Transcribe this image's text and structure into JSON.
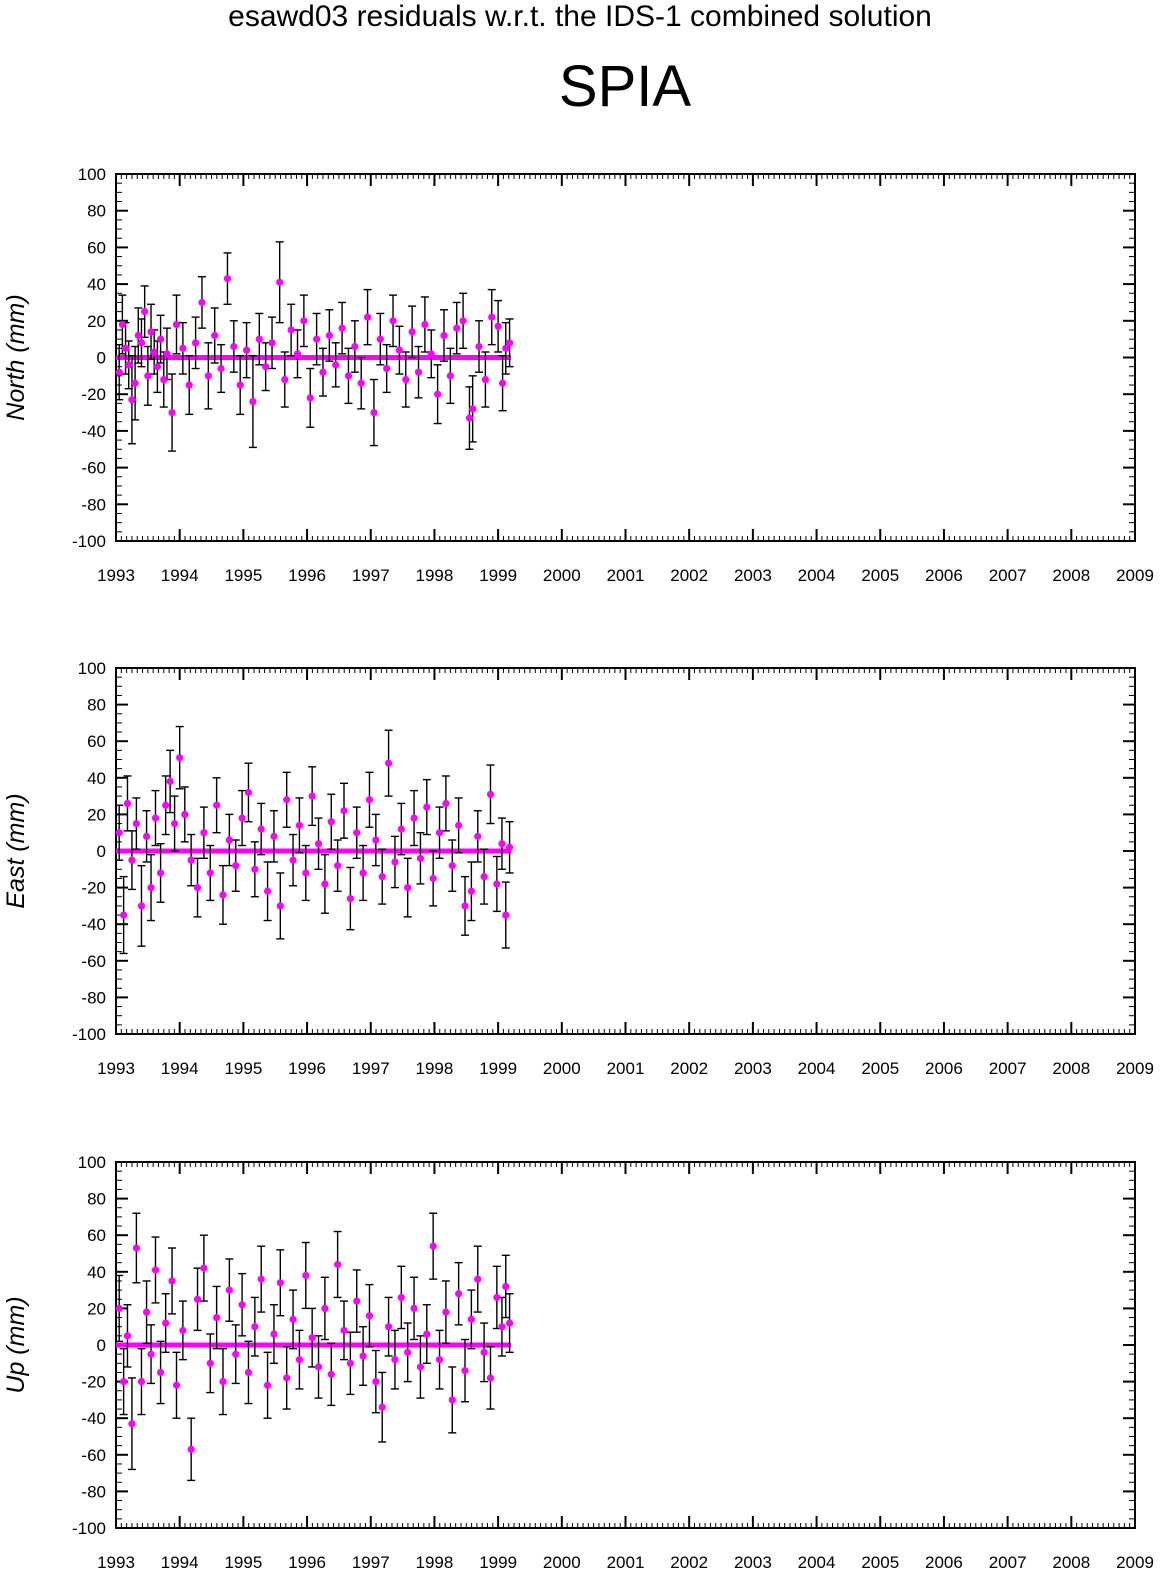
{
  "figure": {
    "title": "esawd03 residuals w.r.t. the IDS-1 combined solution",
    "station": "SPIA"
  },
  "colors": {
    "marker": "#ff00ff",
    "errorbar": "#000000",
    "axes": "#000000",
    "background": "#ffffff"
  },
  "chart_data": [
    {
      "type": "scatter",
      "name": "north",
      "ylabel": "North (mm)",
      "xlim": [
        1993,
        2009
      ],
      "ylim": [
        -100,
        100
      ],
      "xticks": [
        "1993",
        "1994",
        "1995",
        "1996",
        "1997",
        "1998",
        "1999",
        "2000",
        "2001",
        "2002",
        "2003",
        "2004",
        "2005",
        "2006",
        "2007",
        "2008",
        "2009"
      ],
      "yticks": [
        "-100",
        "-80",
        "-60",
        "-40",
        "-20",
        "0",
        "20",
        "40",
        "60",
        "80",
        "100"
      ],
      "grid": false,
      "data_range_x": [
        1993.0,
        1999.2
      ],
      "points": [
        {
          "x": 1993.05,
          "y": -8,
          "err": 15
        },
        {
          "x": 1993.1,
          "y": 18,
          "err": 16
        },
        {
          "x": 1993.15,
          "y": 5,
          "err": 14
        },
        {
          "x": 1993.2,
          "y": -4,
          "err": 13
        },
        {
          "x": 1993.25,
          "y": -23,
          "err": 24
        },
        {
          "x": 1993.3,
          "y": -14,
          "err": 20
        },
        {
          "x": 1993.35,
          "y": 12,
          "err": 15
        },
        {
          "x": 1993.4,
          "y": 8,
          "err": 13
        },
        {
          "x": 1993.45,
          "y": 25,
          "err": 14
        },
        {
          "x": 1993.5,
          "y": -10,
          "err": 16
        },
        {
          "x": 1993.55,
          "y": 14,
          "err": 15
        },
        {
          "x": 1993.6,
          "y": 3,
          "err": 12
        },
        {
          "x": 1993.65,
          "y": -5,
          "err": 14
        },
        {
          "x": 1993.7,
          "y": 10,
          "err": 13
        },
        {
          "x": 1993.75,
          "y": -12,
          "err": 15
        },
        {
          "x": 1993.8,
          "y": 2,
          "err": 14
        },
        {
          "x": 1993.88,
          "y": -30,
          "err": 21
        },
        {
          "x": 1993.95,
          "y": 18,
          "err": 16
        },
        {
          "x": 1994.05,
          "y": 5,
          "err": 14
        },
        {
          "x": 1994.15,
          "y": -15,
          "err": 16
        },
        {
          "x": 1994.25,
          "y": 8,
          "err": 14
        },
        {
          "x": 1994.35,
          "y": 30,
          "err": 14
        },
        {
          "x": 1994.45,
          "y": -10,
          "err": 18
        },
        {
          "x": 1994.55,
          "y": 12,
          "err": 15
        },
        {
          "x": 1994.65,
          "y": -6,
          "err": 13
        },
        {
          "x": 1994.75,
          "y": 43,
          "err": 14
        },
        {
          "x": 1994.85,
          "y": 6,
          "err": 14
        },
        {
          "x": 1994.95,
          "y": -15,
          "err": 16
        },
        {
          "x": 1995.05,
          "y": 4,
          "err": 15
        },
        {
          "x": 1995.15,
          "y": -24,
          "err": 25
        },
        {
          "x": 1995.25,
          "y": 10,
          "err": 14
        },
        {
          "x": 1995.35,
          "y": -5,
          "err": 13
        },
        {
          "x": 1995.45,
          "y": 8,
          "err": 14
        },
        {
          "x": 1995.57,
          "y": 41,
          "err": 22
        },
        {
          "x": 1995.65,
          "y": -12,
          "err": 15
        },
        {
          "x": 1995.75,
          "y": 15,
          "err": 14
        },
        {
          "x": 1995.85,
          "y": 2,
          "err": 13
        },
        {
          "x": 1995.95,
          "y": 20,
          "err": 14
        },
        {
          "x": 1996.05,
          "y": -22,
          "err": 16
        },
        {
          "x": 1996.15,
          "y": 10,
          "err": 14
        },
        {
          "x": 1996.25,
          "y": -8,
          "err": 13
        },
        {
          "x": 1996.35,
          "y": 12,
          "err": 14
        },
        {
          "x": 1996.45,
          "y": -4,
          "err": 12
        },
        {
          "x": 1996.55,
          "y": 16,
          "err": 14
        },
        {
          "x": 1996.65,
          "y": -10,
          "err": 15
        },
        {
          "x": 1996.75,
          "y": 6,
          "err": 14
        },
        {
          "x": 1996.85,
          "y": -14,
          "err": 14
        },
        {
          "x": 1996.95,
          "y": 22,
          "err": 15
        },
        {
          "x": 1997.05,
          "y": -30,
          "err": 18
        },
        {
          "x": 1997.15,
          "y": 10,
          "err": 14
        },
        {
          "x": 1997.25,
          "y": -6,
          "err": 13
        },
        {
          "x": 1997.35,
          "y": 20,
          "err": 14
        },
        {
          "x": 1997.45,
          "y": 4,
          "err": 13
        },
        {
          "x": 1997.55,
          "y": -12,
          "err": 15
        },
        {
          "x": 1997.65,
          "y": 14,
          "err": 14
        },
        {
          "x": 1997.75,
          "y": -8,
          "err": 14
        },
        {
          "x": 1997.85,
          "y": 18,
          "err": 15
        },
        {
          "x": 1997.95,
          "y": 2,
          "err": 13
        },
        {
          "x": 1998.05,
          "y": -20,
          "err": 16
        },
        {
          "x": 1998.15,
          "y": 12,
          "err": 14
        },
        {
          "x": 1998.25,
          "y": -10,
          "err": 15
        },
        {
          "x": 1998.35,
          "y": 16,
          "err": 14
        },
        {
          "x": 1998.45,
          "y": 20,
          "err": 15
        },
        {
          "x": 1998.55,
          "y": -33,
          "err": 17
        },
        {
          "x": 1998.6,
          "y": -28,
          "err": 18
        },
        {
          "x": 1998.7,
          "y": 6,
          "err": 14
        },
        {
          "x": 1998.8,
          "y": -12,
          "err": 15
        },
        {
          "x": 1998.9,
          "y": 22,
          "err": 15
        },
        {
          "x": 1999.0,
          "y": 17,
          "err": 14
        },
        {
          "x": 1999.07,
          "y": -14,
          "err": 15
        },
        {
          "x": 1999.12,
          "y": 5,
          "err": 14
        },
        {
          "x": 1999.18,
          "y": 8,
          "err": 13
        }
      ]
    },
    {
      "type": "scatter",
      "name": "east",
      "ylabel": "East (mm)",
      "xlim": [
        1993,
        2009
      ],
      "ylim": [
        -100,
        100
      ],
      "xticks": [
        "1993",
        "1994",
        "1995",
        "1996",
        "1997",
        "1998",
        "1999",
        "2000",
        "2001",
        "2002",
        "2003",
        "2004",
        "2005",
        "2006",
        "2007",
        "2008",
        "2009"
      ],
      "yticks": [
        "-100",
        "-80",
        "-60",
        "-40",
        "-20",
        "0",
        "20",
        "40",
        "60",
        "80",
        "100"
      ],
      "grid": false,
      "data_range_x": [
        1993.0,
        1999.2
      ],
      "points": [
        {
          "x": 1993.05,
          "y": 10,
          "err": 15
        },
        {
          "x": 1993.12,
          "y": -35,
          "err": 21
        },
        {
          "x": 1993.18,
          "y": 26,
          "err": 15
        },
        {
          "x": 1993.25,
          "y": -5,
          "err": 16
        },
        {
          "x": 1993.32,
          "y": 15,
          "err": 14
        },
        {
          "x": 1993.4,
          "y": -30,
          "err": 22
        },
        {
          "x": 1993.48,
          "y": 8,
          "err": 14
        },
        {
          "x": 1993.55,
          "y": -20,
          "err": 18
        },
        {
          "x": 1993.62,
          "y": 18,
          "err": 15
        },
        {
          "x": 1993.7,
          "y": -12,
          "err": 16
        },
        {
          "x": 1993.78,
          "y": 25,
          "err": 16
        },
        {
          "x": 1993.85,
          "y": 38,
          "err": 17
        },
        {
          "x": 1993.92,
          "y": 15,
          "err": 15
        },
        {
          "x": 1994.0,
          "y": 51,
          "err": 17
        },
        {
          "x": 1994.08,
          "y": 20,
          "err": 15
        },
        {
          "x": 1994.18,
          "y": -5,
          "err": 14
        },
        {
          "x": 1994.28,
          "y": -20,
          "err": 16
        },
        {
          "x": 1994.38,
          "y": 10,
          "err": 14
        },
        {
          "x": 1994.48,
          "y": -12,
          "err": 15
        },
        {
          "x": 1994.58,
          "y": 25,
          "err": 15
        },
        {
          "x": 1994.68,
          "y": -24,
          "err": 16
        },
        {
          "x": 1994.78,
          "y": 6,
          "err": 14
        },
        {
          "x": 1994.88,
          "y": -8,
          "err": 14
        },
        {
          "x": 1994.98,
          "y": 18,
          "err": 15
        },
        {
          "x": 1995.08,
          "y": 32,
          "err": 16
        },
        {
          "x": 1995.18,
          "y": -10,
          "err": 15
        },
        {
          "x": 1995.28,
          "y": 12,
          "err": 14
        },
        {
          "x": 1995.38,
          "y": -22,
          "err": 16
        },
        {
          "x": 1995.48,
          "y": 8,
          "err": 14
        },
        {
          "x": 1995.58,
          "y": -30,
          "err": 18
        },
        {
          "x": 1995.68,
          "y": 28,
          "err": 15
        },
        {
          "x": 1995.78,
          "y": -5,
          "err": 14
        },
        {
          "x": 1995.88,
          "y": 14,
          "err": 15
        },
        {
          "x": 1995.98,
          "y": -12,
          "err": 15
        },
        {
          "x": 1996.08,
          "y": 30,
          "err": 16
        },
        {
          "x": 1996.18,
          "y": 4,
          "err": 14
        },
        {
          "x": 1996.28,
          "y": -18,
          "err": 16
        },
        {
          "x": 1996.38,
          "y": 16,
          "err": 15
        },
        {
          "x": 1996.48,
          "y": -8,
          "err": 14
        },
        {
          "x": 1996.58,
          "y": 22,
          "err": 15
        },
        {
          "x": 1996.68,
          "y": -26,
          "err": 17
        },
        {
          "x": 1996.78,
          "y": 10,
          "err": 14
        },
        {
          "x": 1996.88,
          "y": -12,
          "err": 15
        },
        {
          "x": 1996.98,
          "y": 28,
          "err": 15
        },
        {
          "x": 1997.08,
          "y": 6,
          "err": 14
        },
        {
          "x": 1997.18,
          "y": -14,
          "err": 15
        },
        {
          "x": 1997.28,
          "y": 48,
          "err": 18
        },
        {
          "x": 1997.38,
          "y": -6,
          "err": 14
        },
        {
          "x": 1997.48,
          "y": 12,
          "err": 14
        },
        {
          "x": 1997.58,
          "y": -20,
          "err": 16
        },
        {
          "x": 1997.68,
          "y": 18,
          "err": 15
        },
        {
          "x": 1997.78,
          "y": -4,
          "err": 14
        },
        {
          "x": 1997.88,
          "y": 24,
          "err": 15
        },
        {
          "x": 1997.98,
          "y": -15,
          "err": 15
        },
        {
          "x": 1998.08,
          "y": 10,
          "err": 14
        },
        {
          "x": 1998.18,
          "y": 26,
          "err": 15
        },
        {
          "x": 1998.28,
          "y": -8,
          "err": 14
        },
        {
          "x": 1998.38,
          "y": 14,
          "err": 15
        },
        {
          "x": 1998.48,
          "y": -30,
          "err": 16
        },
        {
          "x": 1998.58,
          "y": -22,
          "err": 16
        },
        {
          "x": 1998.68,
          "y": 8,
          "err": 14
        },
        {
          "x": 1998.78,
          "y": -14,
          "err": 15
        },
        {
          "x": 1998.88,
          "y": 31,
          "err": 16
        },
        {
          "x": 1998.98,
          "y": -18,
          "err": 15
        },
        {
          "x": 1999.06,
          "y": 4,
          "err": 14
        },
        {
          "x": 1999.12,
          "y": -35,
          "err": 18
        },
        {
          "x": 1999.18,
          "y": 2,
          "err": 14
        }
      ]
    },
    {
      "type": "scatter",
      "name": "up",
      "ylabel": "Up (mm)",
      "xlim": [
        1993,
        2009
      ],
      "ylim": [
        -100,
        100
      ],
      "xticks": [
        "1993",
        "1994",
        "1995",
        "1996",
        "1997",
        "1998",
        "1999",
        "2000",
        "2001",
        "2002",
        "2003",
        "2004",
        "2005",
        "2006",
        "2007",
        "2008",
        "2009"
      ],
      "yticks": [
        "-100",
        "-80",
        "-60",
        "-40",
        "-20",
        "0",
        "20",
        "40",
        "60",
        "80",
        "100"
      ],
      "grid": false,
      "data_range_x": [
        1993.0,
        1999.2
      ],
      "points": [
        {
          "x": 1993.05,
          "y": 20,
          "err": 18
        },
        {
          "x": 1993.12,
          "y": -20,
          "err": 18
        },
        {
          "x": 1993.18,
          "y": 5,
          "err": 17
        },
        {
          "x": 1993.25,
          "y": -43,
          "err": 25
        },
        {
          "x": 1993.32,
          "y": 53,
          "err": 19
        },
        {
          "x": 1993.4,
          "y": -20,
          "err": 18
        },
        {
          "x": 1993.48,
          "y": 18,
          "err": 17
        },
        {
          "x": 1993.55,
          "y": -5,
          "err": 16
        },
        {
          "x": 1993.62,
          "y": 41,
          "err": 18
        },
        {
          "x": 1993.7,
          "y": -15,
          "err": 17
        },
        {
          "x": 1993.78,
          "y": 12,
          "err": 16
        },
        {
          "x": 1993.88,
          "y": 35,
          "err": 18
        },
        {
          "x": 1993.95,
          "y": -22,
          "err": 18
        },
        {
          "x": 1994.05,
          "y": 8,
          "err": 16
        },
        {
          "x": 1994.18,
          "y": -57,
          "err": 17
        },
        {
          "x": 1994.28,
          "y": 25,
          "err": 17
        },
        {
          "x": 1994.38,
          "y": 42,
          "err": 18
        },
        {
          "x": 1994.48,
          "y": -10,
          "err": 16
        },
        {
          "x": 1994.58,
          "y": 15,
          "err": 17
        },
        {
          "x": 1994.68,
          "y": -20,
          "err": 18
        },
        {
          "x": 1994.78,
          "y": 30,
          "err": 17
        },
        {
          "x": 1994.88,
          "y": -5,
          "err": 16
        },
        {
          "x": 1994.98,
          "y": 22,
          "err": 17
        },
        {
          "x": 1995.08,
          "y": -15,
          "err": 17
        },
        {
          "x": 1995.18,
          "y": 10,
          "err": 16
        },
        {
          "x": 1995.28,
          "y": 36,
          "err": 18
        },
        {
          "x": 1995.38,
          "y": -22,
          "err": 18
        },
        {
          "x": 1995.48,
          "y": 6,
          "err": 16
        },
        {
          "x": 1995.58,
          "y": 34,
          "err": 18
        },
        {
          "x": 1995.68,
          "y": -18,
          "err": 17
        },
        {
          "x": 1995.78,
          "y": 14,
          "err": 16
        },
        {
          "x": 1995.88,
          "y": -8,
          "err": 16
        },
        {
          "x": 1995.98,
          "y": 38,
          "err": 18
        },
        {
          "x": 1996.08,
          "y": 4,
          "err": 16
        },
        {
          "x": 1996.18,
          "y": -12,
          "err": 17
        },
        {
          "x": 1996.28,
          "y": 20,
          "err": 17
        },
        {
          "x": 1996.38,
          "y": -16,
          "err": 17
        },
        {
          "x": 1996.48,
          "y": 44,
          "err": 18
        },
        {
          "x": 1996.58,
          "y": 8,
          "err": 16
        },
        {
          "x": 1996.68,
          "y": -10,
          "err": 17
        },
        {
          "x": 1996.78,
          "y": 24,
          "err": 17
        },
        {
          "x": 1996.88,
          "y": -6,
          "err": 16
        },
        {
          "x": 1996.98,
          "y": 16,
          "err": 17
        },
        {
          "x": 1997.08,
          "y": -20,
          "err": 17
        },
        {
          "x": 1997.18,
          "y": -34,
          "err": 19
        },
        {
          "x": 1997.28,
          "y": 10,
          "err": 16
        },
        {
          "x": 1997.38,
          "y": -8,
          "err": 16
        },
        {
          "x": 1997.48,
          "y": 26,
          "err": 17
        },
        {
          "x": 1997.58,
          "y": -4,
          "err": 16
        },
        {
          "x": 1997.68,
          "y": 20,
          "err": 17
        },
        {
          "x": 1997.78,
          "y": -12,
          "err": 17
        },
        {
          "x": 1997.88,
          "y": 6,
          "err": 16
        },
        {
          "x": 1997.98,
          "y": 54,
          "err": 18
        },
        {
          "x": 1998.08,
          "y": -8,
          "err": 16
        },
        {
          "x": 1998.18,
          "y": 18,
          "err": 17
        },
        {
          "x": 1998.28,
          "y": -30,
          "err": 18
        },
        {
          "x": 1998.38,
          "y": 28,
          "err": 17
        },
        {
          "x": 1998.48,
          "y": -14,
          "err": 17
        },
        {
          "x": 1998.58,
          "y": 14,
          "err": 16
        },
        {
          "x": 1998.68,
          "y": 36,
          "err": 18
        },
        {
          "x": 1998.78,
          "y": -4,
          "err": 16
        },
        {
          "x": 1998.88,
          "y": -18,
          "err": 17
        },
        {
          "x": 1998.98,
          "y": 26,
          "err": 17
        },
        {
          "x": 1999.06,
          "y": 10,
          "err": 16
        },
        {
          "x": 1999.12,
          "y": 32,
          "err": 17
        },
        {
          "x": 1999.18,
          "y": 12,
          "err": 16
        }
      ]
    }
  ]
}
